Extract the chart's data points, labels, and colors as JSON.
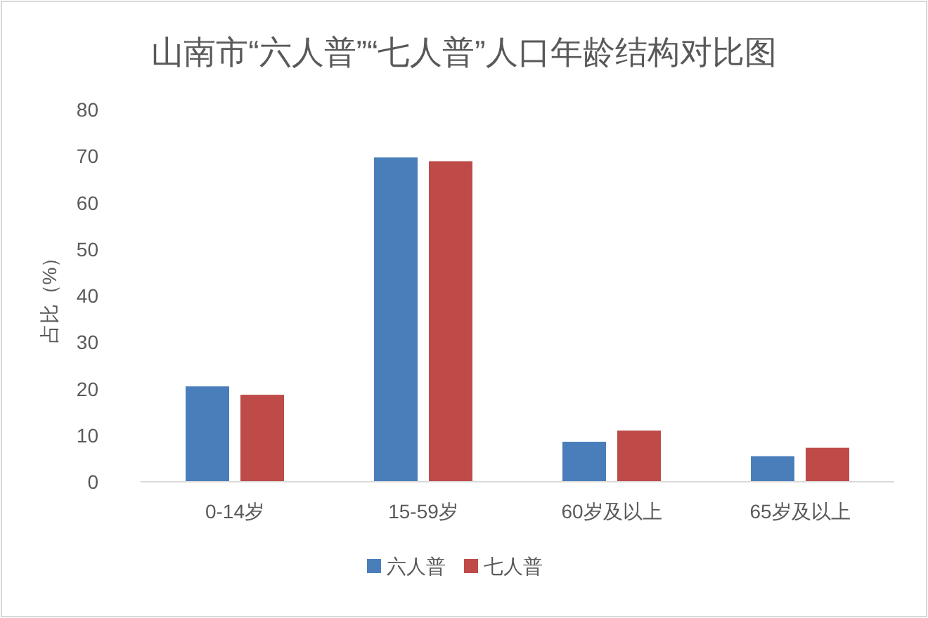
{
  "chart_data": {
    "type": "bar",
    "title": "山南市“六人普”“七人普”人口年龄结构对比图",
    "ylabel": "占比（%）",
    "categories": [
      "0-14岁",
      "15-59岁",
      "60岁及以上",
      "65岁及以上"
    ],
    "series": [
      {
        "name": "六人普",
        "color": "#4a7ebb",
        "values": [
          20.5,
          69.7,
          8.6,
          5.5
        ]
      },
      {
        "name": "七人普",
        "color": "#be4b48",
        "values": [
          18.7,
          68.9,
          11.0,
          7.3
        ]
      }
    ],
    "ylim": [
      0,
      80
    ],
    "yticks": [
      0,
      10,
      20,
      30,
      40,
      50,
      60,
      70,
      80
    ],
    "grid": false,
    "legend": "bottom"
  }
}
